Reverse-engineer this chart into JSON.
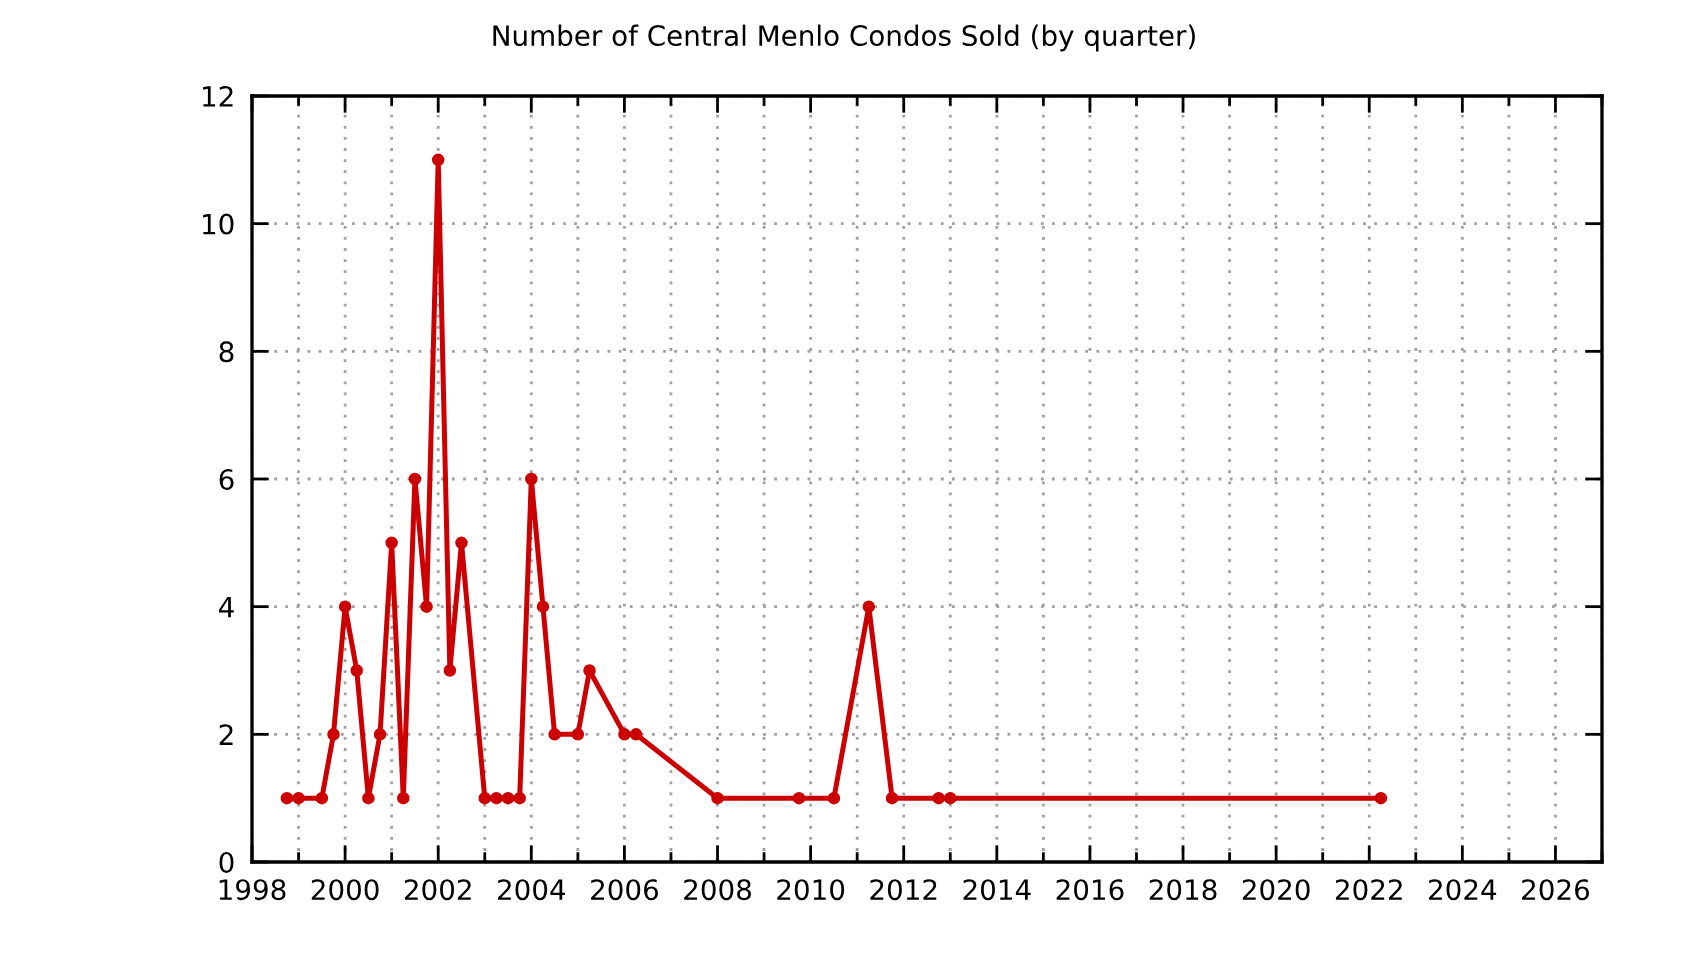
{
  "chart_data": {
    "type": "line",
    "title": "Number of Central Menlo Condos Sold (by quarter)",
    "x": [
      1998.75,
      1999.0,
      1999.5,
      1999.75,
      2000.0,
      2000.25,
      2000.5,
      2000.75,
      2001.0,
      2001.25,
      2001.5,
      2001.75,
      2002.0,
      2002.25,
      2002.5,
      2003.0,
      2003.25,
      2003.5,
      2003.75,
      2004.0,
      2004.25,
      2004.5,
      2005.0,
      2005.25,
      2006.0,
      2006.25,
      2008.0,
      2009.75,
      2010.5,
      2011.25,
      2011.75,
      2012.75,
      2013.0,
      2022.25
    ],
    "series": [
      {
        "color": "#cc0000",
        "values": [
          1,
          1,
          1,
          2,
          4,
          3,
          1,
          2,
          5,
          1,
          6,
          4,
          11,
          3,
          5,
          1,
          1,
          1,
          1,
          6,
          4,
          2,
          2,
          3,
          2,
          2,
          1,
          1,
          1,
          4,
          1,
          1,
          1,
          1
        ]
      }
    ],
    "xlim": [
      1998,
      2027
    ],
    "xticks": [
      1998,
      {
        "value": 1999,
        "label": null
      },
      2000,
      {
        "value": 2001,
        "label": null
      },
      2002,
      {
        "value": 2003,
        "label": null
      },
      2004,
      {
        "value": 2005,
        "label": null
      },
      2006,
      {
        "value": 2007,
        "label": null
      },
      2008,
      {
        "value": 2009,
        "label": null
      },
      2010,
      {
        "value": 2011,
        "label": null
      },
      2012,
      {
        "value": 2013,
        "label": null
      },
      2014,
      {
        "value": 2015,
        "label": null
      },
      2016,
      {
        "value": 2017,
        "label": null
      },
      2018,
      {
        "value": 2019,
        "label": null
      },
      2020,
      {
        "value": 2021,
        "label": null
      },
      2022,
      {
        "value": 2023,
        "label": null
      },
      2024,
      {
        "value": 2025,
        "label": null
      },
      2026,
      {
        "value": 2027,
        "label": null
      }
    ],
    "ylim": [
      0,
      12
    ],
    "yticks": [
      0,
      2,
      4,
      6,
      8,
      10,
      12
    ],
    "grid": true,
    "marker": "circle",
    "line_style": "solid"
  }
}
